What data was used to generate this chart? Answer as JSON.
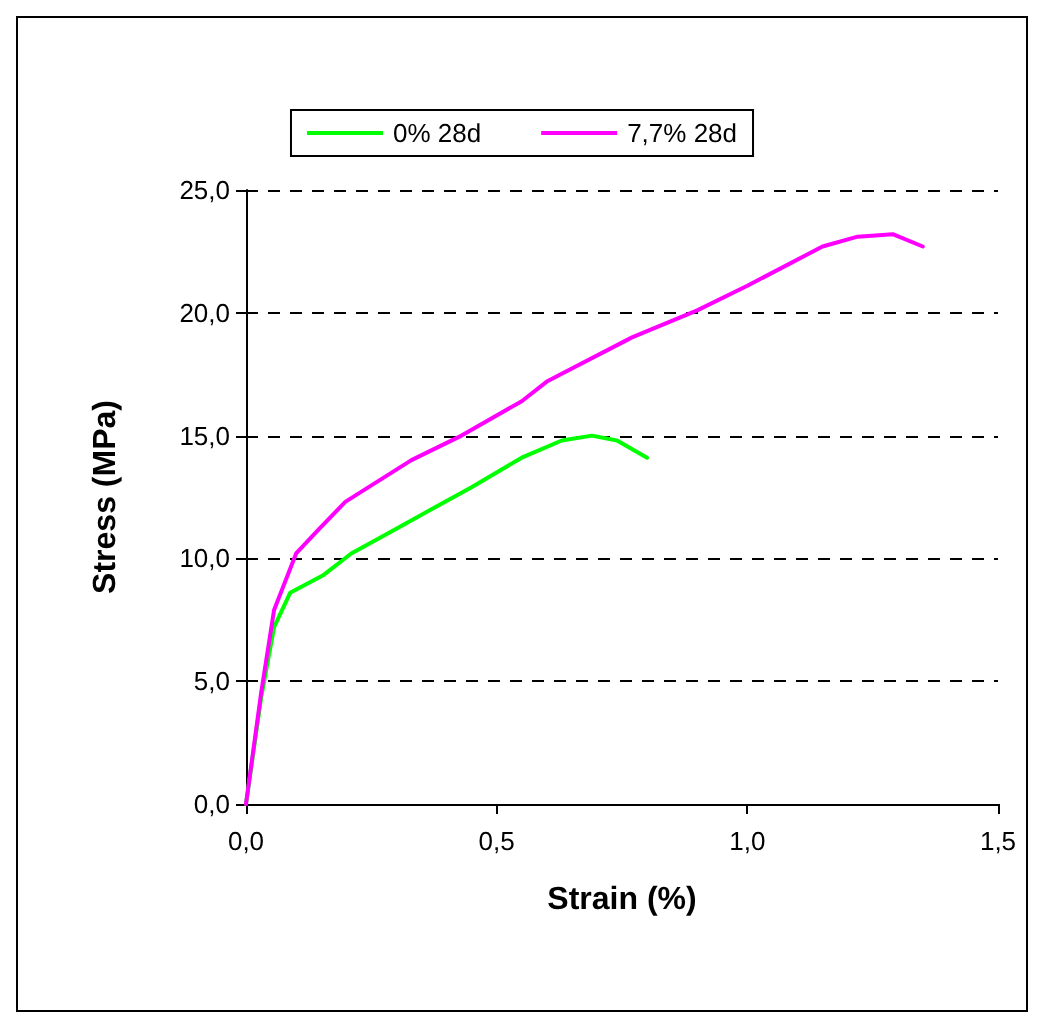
{
  "chart_data": {
    "type": "line",
    "xlabel": "Strain (%)",
    "ylabel": "Stress (MPa)",
    "xlim": [
      0,
      1.5
    ],
    "ylim": [
      0,
      25
    ],
    "xticks": [
      {
        "value": 0,
        "label": "0,0"
      },
      {
        "value": 0.5,
        "label": "0,5"
      },
      {
        "value": 1,
        "label": "1,0"
      },
      {
        "value": 1.5,
        "label": "1,5"
      }
    ],
    "yticks": [
      {
        "value": 0,
        "label": "0,0"
      },
      {
        "value": 5,
        "label": "5,0"
      },
      {
        "value": 10,
        "label": "10,0"
      },
      {
        "value": 15,
        "label": "15,0"
      },
      {
        "value": 20,
        "label": "20,0"
      },
      {
        "value": 25,
        "label": "25,0"
      }
    ],
    "grid": "y",
    "legend": "top",
    "marker": "none",
    "line_style": "solid",
    "series": [
      {
        "name": "0% 28d",
        "color": "#00ff00",
        "x": [
          0,
          0.03,
          0.056,
          0.088,
          0.153,
          0.21,
          0.29,
          0.37,
          0.45,
          0.55,
          0.63,
          0.69,
          0.74,
          0.8
        ],
        "values": [
          0,
          4.3,
          7.2,
          8.6,
          9.3,
          10.2,
          11.1,
          12.0,
          12.9,
          14.1,
          14.8,
          15.0,
          14.8,
          14.1
        ]
      },
      {
        "name": "7,7% 28d",
        "color": "#ff00ff",
        "x": [
          0,
          0.03,
          0.056,
          0.1,
          0.146,
          0.198,
          0.33,
          0.43,
          0.55,
          0.6,
          0.77,
          0.9,
          1.0,
          1.15,
          1.22,
          1.29,
          1.35
        ],
        "values": [
          0,
          4.5,
          7.9,
          10.2,
          11.2,
          12.3,
          14.0,
          15.0,
          16.4,
          17.2,
          19.0,
          20.1,
          21.1,
          22.7,
          23.1,
          23.2,
          22.7
        ]
      }
    ]
  }
}
